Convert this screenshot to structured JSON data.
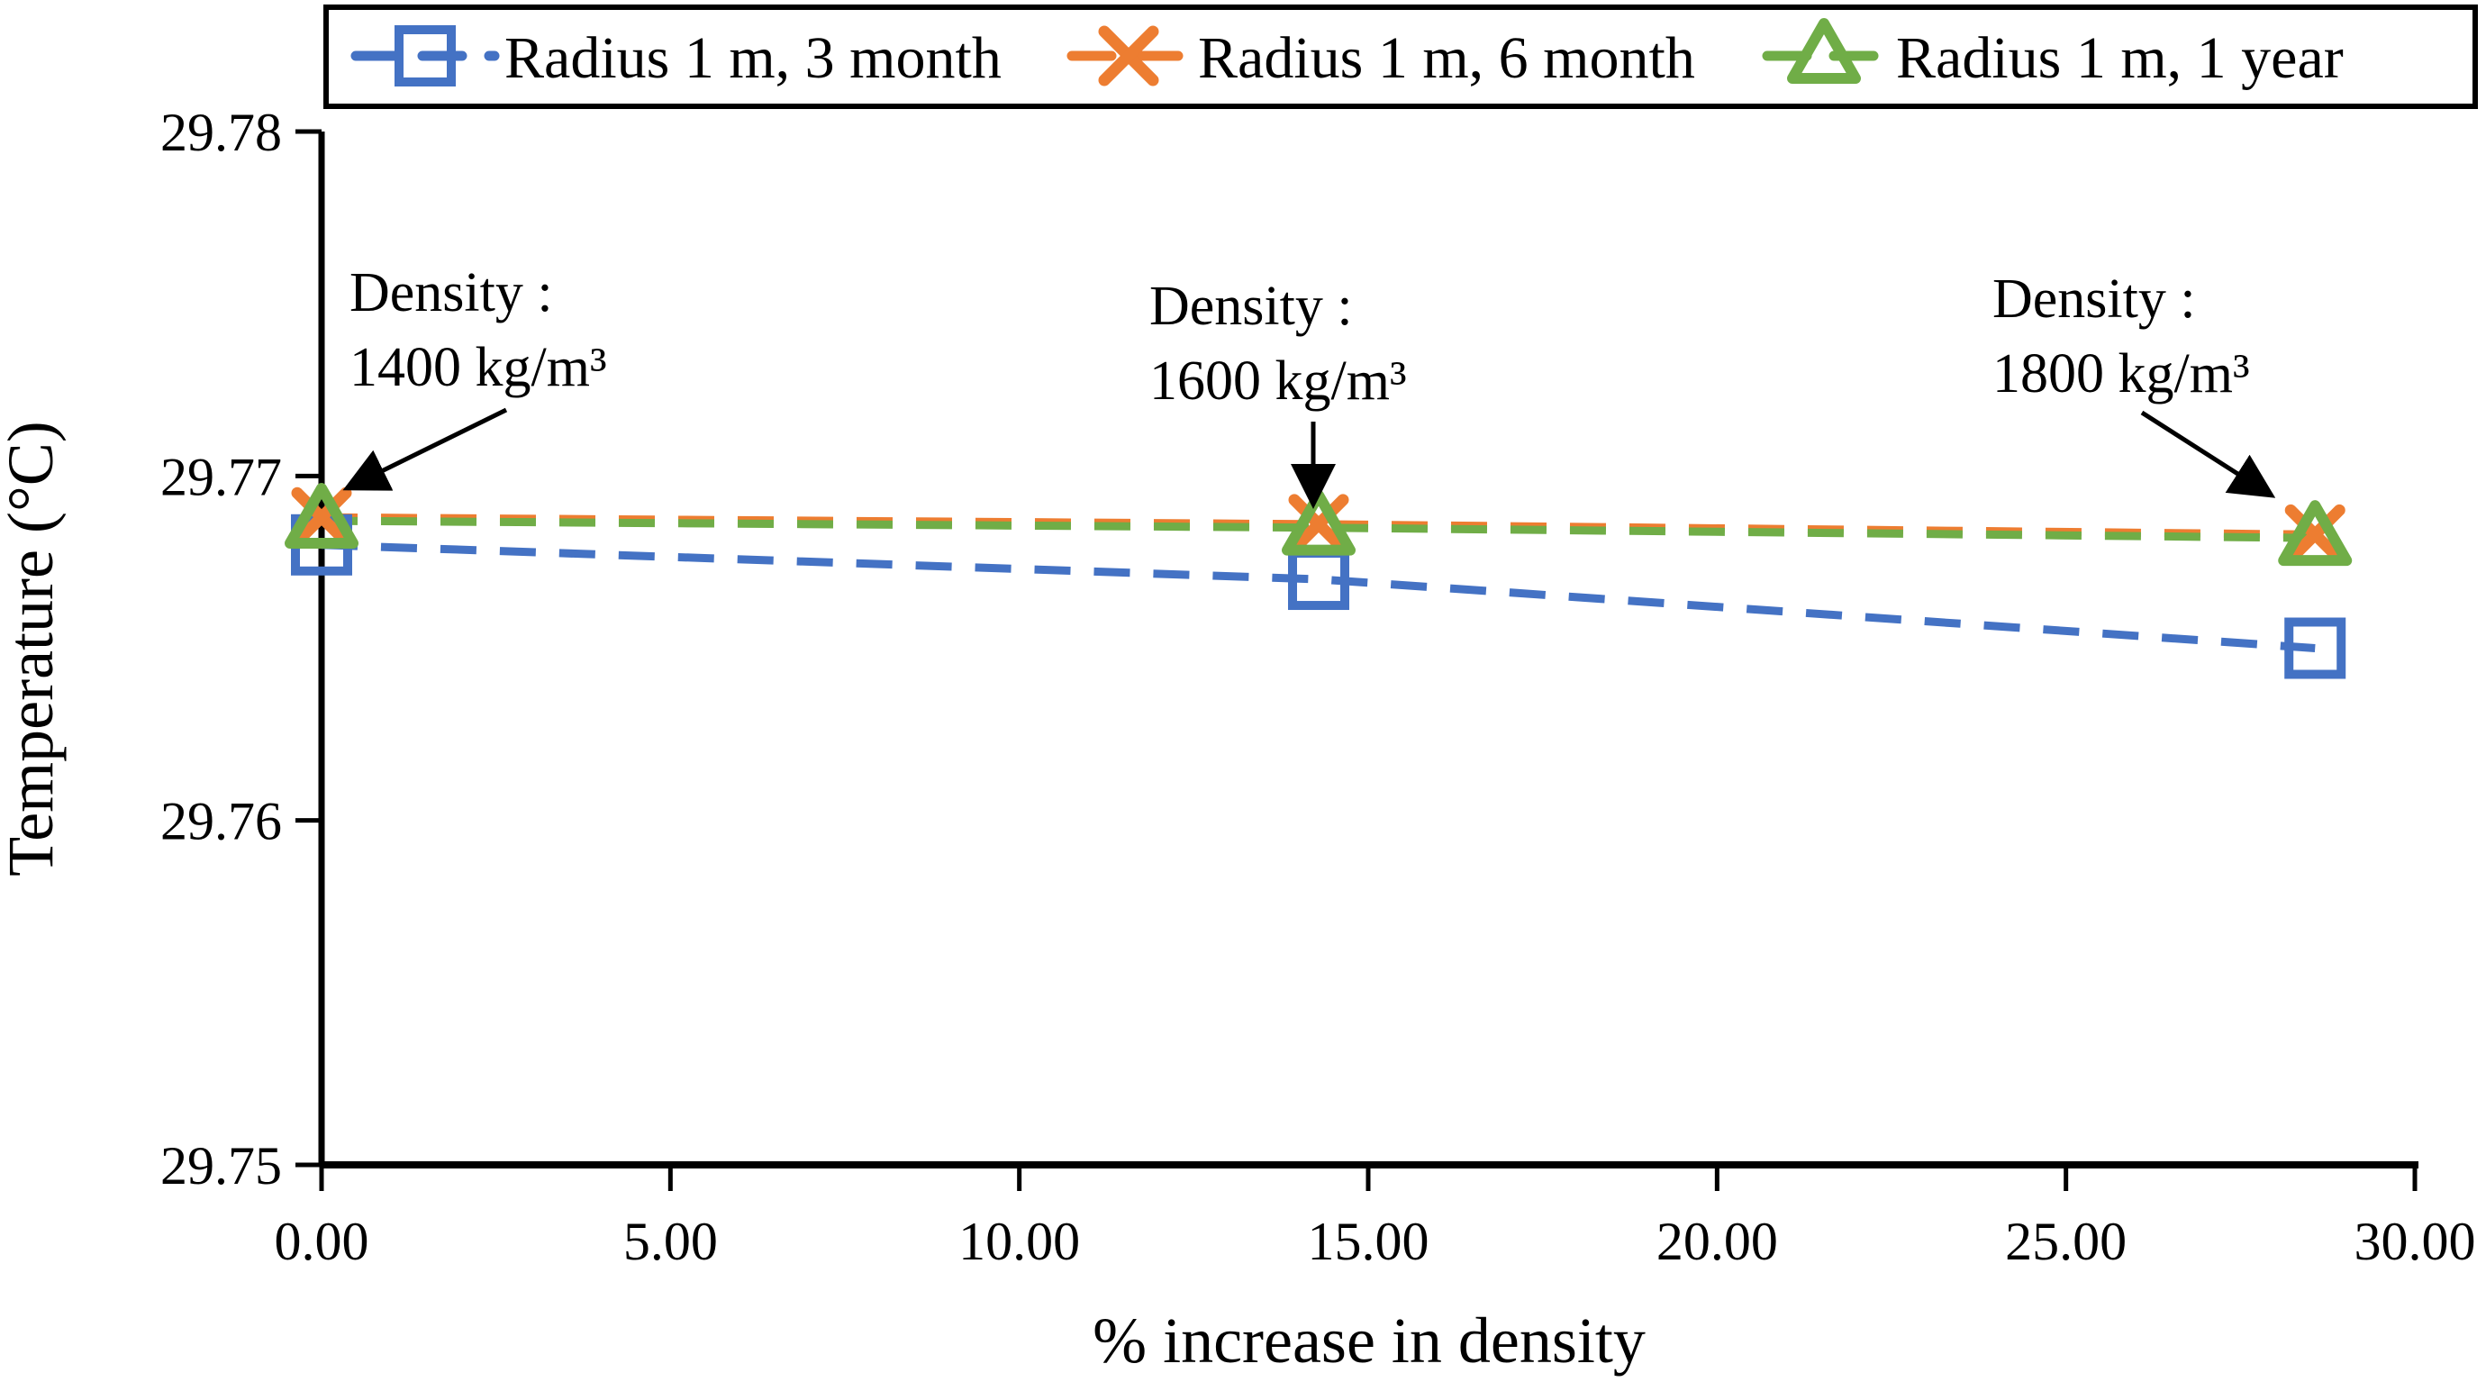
{
  "chart_data": {
    "type": "line",
    "title": "",
    "xlabel": "% increase in density",
    "ylabel": "Temperature (°C)",
    "xlim": [
      0,
      30
    ],
    "ylim": [
      29.75,
      29.78
    ],
    "x_tick_labels": [
      "0.00",
      "5.00",
      "10.00",
      "15.00",
      "20.00",
      "25.00",
      "30.00"
    ],
    "x_tick_values": [
      0,
      5,
      10,
      15,
      20,
      25,
      30
    ],
    "y_tick_labels": [
      "29.75",
      "29.76",
      "29.77",
      "29.78"
    ],
    "y_tick_values": [
      29.75,
      29.76,
      29.77,
      29.78
    ],
    "grid": false,
    "line_style": "dashed",
    "legend_position": "top",
    "axis_color": "#000000",
    "x": [
      0.0,
      14.29,
      28.57
    ],
    "series": [
      {
        "name": "Radius 1 m, 3 month",
        "marker": "square",
        "color": "#4472C4",
        "values": [
          29.768,
          29.767,
          29.765
        ]
      },
      {
        "name": "Radius 1 m, 6 month",
        "marker": "x",
        "color": "#ED7D31",
        "values": [
          29.7688,
          29.7686,
          29.7683
        ]
      },
      {
        "name": "Radius 1 m, 1 year",
        "marker": "triangle",
        "color": "#70AD47",
        "values": [
          29.7687,
          29.7685,
          29.7682
        ]
      }
    ],
    "annotations": [
      {
        "lines": [
          "Density :",
          "1400 kg/m³"
        ],
        "target_x": 0.0
      },
      {
        "lines": [
          "Density :",
          "1600 kg/m³"
        ],
        "target_x": 14.29
      },
      {
        "lines": [
          "Density :",
          "1800 kg/m³"
        ],
        "target_x": 28.57
      }
    ]
  }
}
